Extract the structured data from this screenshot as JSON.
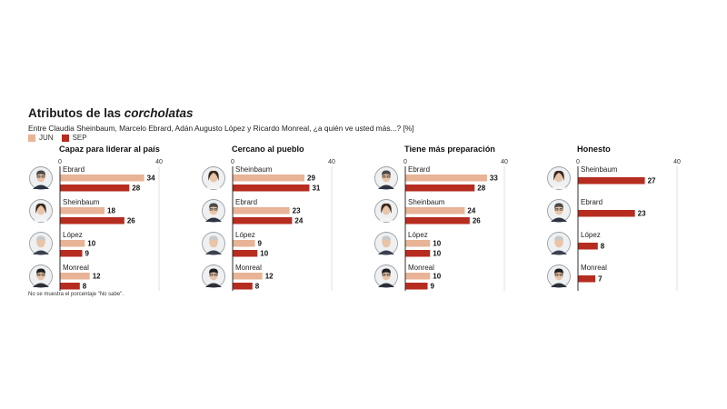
{
  "title": {
    "main": "Atributos de las",
    "italic": "corcholatas"
  },
  "subtitle": "Entre Claudia Sheinbaum, Marcelo Ebrard, Adán Augusto López y Ricardo Monreal, ¿a quién ve usted más...? [%]",
  "legend": [
    {
      "label": "JUN",
      "color": "#e8b396"
    },
    {
      "label": "SEP",
      "color": "#b62d20"
    }
  ],
  "footnote": "No se muestra el porcentaje \"No sabe\".",
  "colors": {
    "jun": "#e8b396",
    "sep": "#b62d20",
    "axis": "#1a1a1a",
    "grid": "#d9d9d9"
  },
  "chart_data": [
    {
      "type": "bar",
      "title": "Capaz para liderar al país",
      "xlim": [
        0,
        40
      ],
      "ticks": [
        0,
        40
      ],
      "categories": [
        "Ebrard",
        "Sheinbaum",
        "López",
        "Monreal"
      ],
      "portrait_icons": [
        "ebrard-portrait-icon",
        "sheinbaum-portrait-icon",
        "lopez-portrait-icon",
        "monreal-portrait-icon"
      ],
      "series": [
        {
          "name": "JUN",
          "values": [
            34,
            18,
            10,
            12
          ]
        },
        {
          "name": "SEP",
          "values": [
            28,
            26,
            9,
            8
          ]
        }
      ]
    },
    {
      "type": "bar",
      "title": "Cercano al pueblo",
      "xlim": [
        0,
        40
      ],
      "ticks": [
        0,
        40
      ],
      "categories": [
        "Sheinbaum",
        "Ebrard",
        "López",
        "Monreal"
      ],
      "portrait_icons": [
        "sheinbaum-portrait-icon",
        "ebrard-portrait-icon",
        "lopez-portrait-icon",
        "monreal-portrait-icon"
      ],
      "series": [
        {
          "name": "JUN",
          "values": [
            29,
            23,
            9,
            12
          ]
        },
        {
          "name": "SEP",
          "values": [
            31,
            24,
            10,
            8
          ]
        }
      ]
    },
    {
      "type": "bar",
      "title": "Tiene más preparación",
      "xlim": [
        0,
        40
      ],
      "ticks": [
        0,
        40
      ],
      "categories": [
        "Ebrard",
        "Sheinbaum",
        "López",
        "Monreal"
      ],
      "portrait_icons": [
        "ebrard-portrait-icon",
        "sheinbaum-portrait-icon",
        "lopez-portrait-icon",
        "monreal-portrait-icon"
      ],
      "series": [
        {
          "name": "JUN",
          "values": [
            33,
            24,
            10,
            10
          ]
        },
        {
          "name": "SEP",
          "values": [
            28,
            26,
            10,
            9
          ]
        }
      ]
    },
    {
      "type": "bar",
      "title": "Honesto",
      "xlim": [
        0,
        40
      ],
      "ticks": [
        0,
        40
      ],
      "categories": [
        "Sheinbaum",
        "Ebrard",
        "López",
        "Monreal"
      ],
      "portrait_icons": [
        "sheinbaum-portrait-icon",
        "ebrard-portrait-icon",
        "lopez-portrait-icon",
        "monreal-portrait-icon"
      ],
      "series": [
        {
          "name": "SEP",
          "values": [
            27,
            23,
            8,
            7
          ]
        }
      ]
    }
  ]
}
